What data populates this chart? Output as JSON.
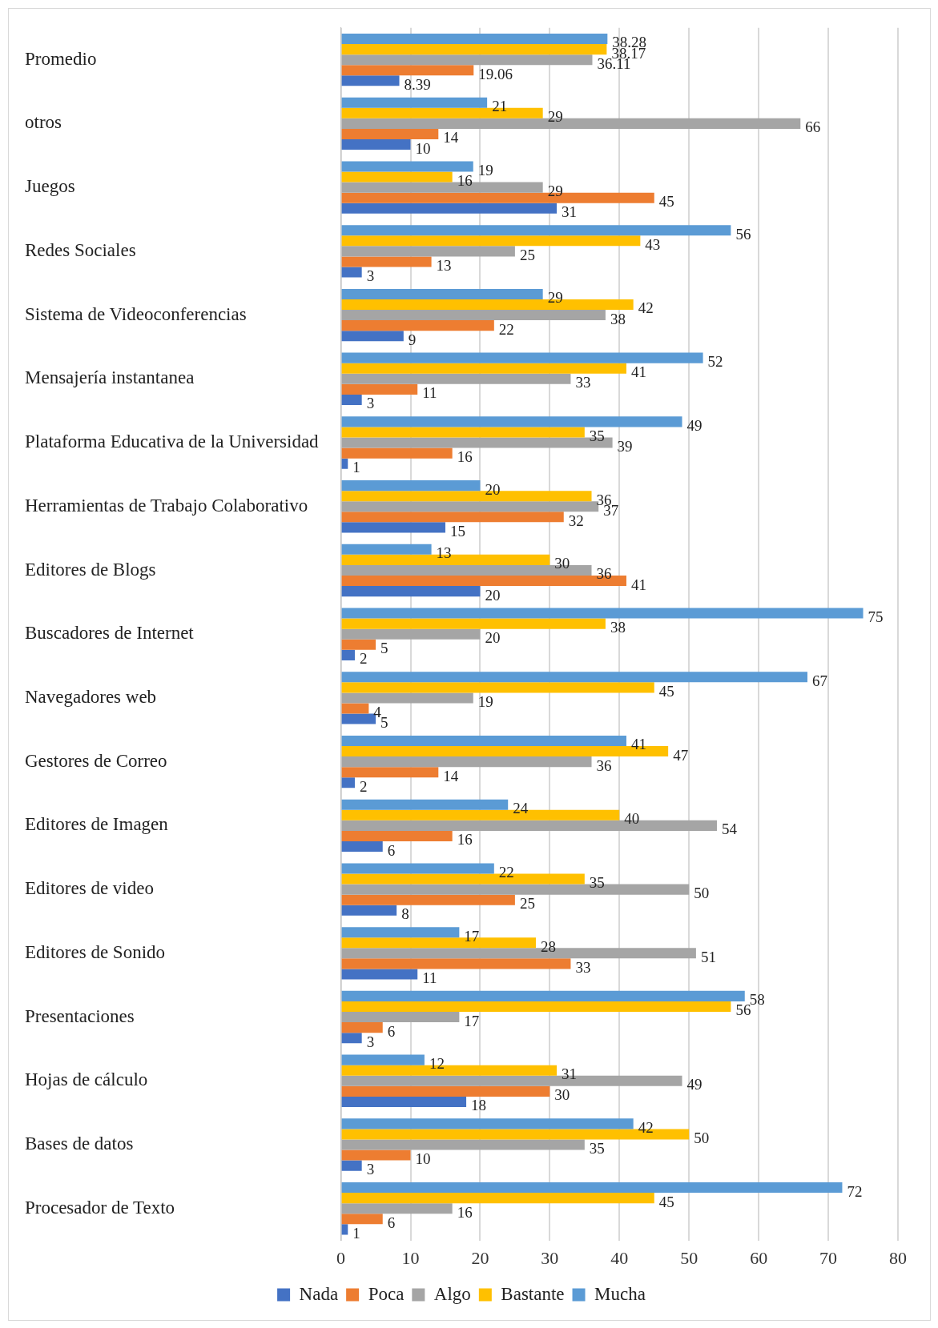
{
  "chart_data": {
    "type": "bar",
    "orientation": "horizontal",
    "categories": [
      "Promedio",
      "otros",
      "Juegos",
      "Redes Sociales",
      "Sistema de Videoconferencias",
      "Mensajería instantanea",
      "Plataforma Educativa de la Universidad",
      "Herramientas de Trabajo Colaborativo",
      "Editores de Blogs",
      "Buscadores de Internet",
      "Navegadores web",
      "Gestores de Correo",
      "Editores de Imagen",
      "Editores de video",
      "Editores de Sonido",
      "Presentaciones",
      "Hojas de cálculo",
      "Bases de datos",
      "Procesador de Texto"
    ],
    "series": [
      {
        "name": "Nada",
        "color": "#4472c4",
        "values": [
          8.39,
          10,
          31,
          3,
          9,
          3,
          1,
          15,
          20,
          2,
          5,
          2,
          6,
          8,
          11,
          3,
          18,
          3,
          1
        ]
      },
      {
        "name": "Poca",
        "color": "#ed7d31",
        "values": [
          19.06,
          14,
          45,
          13,
          22,
          11,
          16,
          32,
          41,
          5,
          4,
          14,
          16,
          25,
          33,
          6,
          30,
          10,
          6
        ]
      },
      {
        "name": "Algo",
        "color": "#a5a5a5",
        "values": [
          36.11,
          66,
          29,
          25,
          38,
          33,
          39,
          37,
          36,
          20,
          19,
          36,
          54,
          50,
          51,
          17,
          49,
          35,
          16
        ]
      },
      {
        "name": "Bastante",
        "color": "#ffc000",
        "values": [
          38.17,
          29,
          16,
          43,
          42,
          41,
          35,
          36,
          30,
          38,
          45,
          47,
          40,
          35,
          28,
          56,
          31,
          50,
          45
        ]
      },
      {
        "name": "Mucha",
        "color": "#5b9bd5",
        "values": [
          38.28,
          21,
          19,
          56,
          29,
          52,
          49,
          20,
          13,
          75,
          67,
          41,
          24,
          22,
          17,
          58,
          12,
          42,
          72
        ]
      }
    ],
    "xlim": [
      0,
      80
    ],
    "xticks": [
      0,
      10,
      20,
      30,
      40,
      50,
      60,
      70,
      80
    ],
    "grid": "x",
    "legend": "bottom",
    "data_labels": true
  }
}
